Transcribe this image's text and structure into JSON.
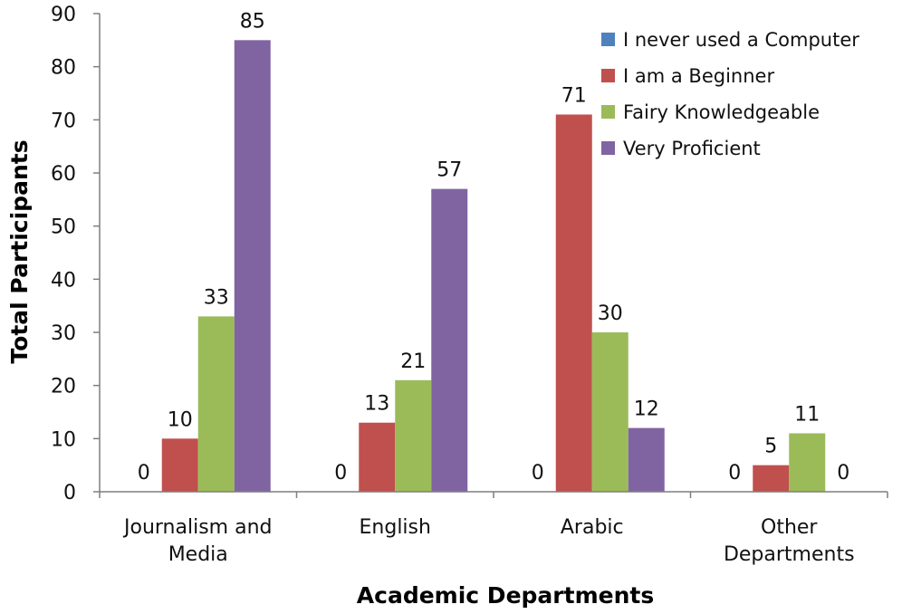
{
  "chart_data": {
    "type": "bar",
    "title": "",
    "xlabel": "Academic Departments",
    "ylabel": "Total Participants",
    "ylim": [
      0,
      90
    ],
    "yticks": [
      0,
      10,
      20,
      30,
      40,
      50,
      60,
      70,
      80,
      90
    ],
    "grid": false,
    "legend_position": "top-right",
    "categories": [
      [
        "Journalism and",
        "Media"
      ],
      [
        "English"
      ],
      [
        "Arabic"
      ],
      [
        "Other",
        "Departments"
      ]
    ],
    "series": [
      {
        "name": "I never used a Computer",
        "color": "#4F81BD",
        "values": [
          0,
          0,
          0,
          0
        ]
      },
      {
        "name": "I am a Beginner",
        "color": "#C0504D",
        "values": [
          10,
          13,
          71,
          5
        ]
      },
      {
        "name": "Fairy Knowledgeable",
        "color": "#9BBB59",
        "values": [
          33,
          21,
          30,
          11
        ]
      },
      {
        "name": "Very Proficient",
        "color": "#8064A2",
        "values": [
          85,
          57,
          12,
          0
        ]
      }
    ]
  }
}
